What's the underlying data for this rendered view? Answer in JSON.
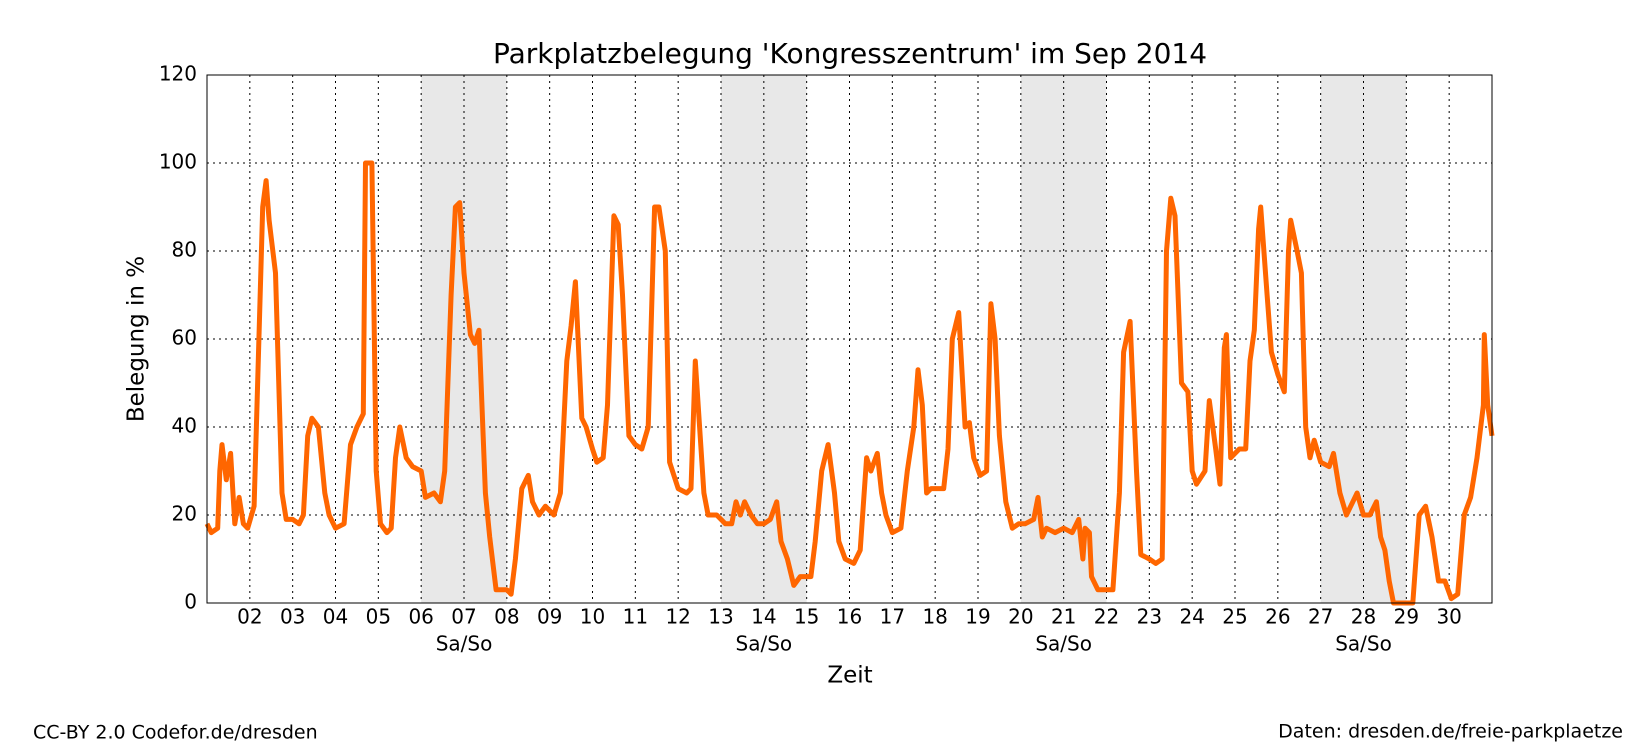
{
  "chart_data": {
    "type": "line",
    "title": "Parkplatzbelegung 'Kongresszentrum' im Sep 2014",
    "x_label": "Zeit",
    "y_label": "Belegung in %",
    "footer_left": "CC-BY 2.0 Codefor.de/dresden",
    "footer_right": "Daten: dresden.de/freie-parkplaetze",
    "color": "#ff6600",
    "grid": true,
    "xlim": [
      1,
      31
    ],
    "ylim": [
      0,
      120
    ],
    "yticks": [
      0,
      20,
      40,
      60,
      80,
      100,
      120
    ],
    "xticks": [
      {
        "value": 2,
        "label": "02"
      },
      {
        "value": 3,
        "label": "03"
      },
      {
        "value": 4,
        "label": "04"
      },
      {
        "value": 5,
        "label": "05"
      },
      {
        "value": 6,
        "label": "06"
      },
      {
        "value": 7,
        "label": "07"
      },
      {
        "value": 8,
        "label": "08"
      },
      {
        "value": 9,
        "label": "09"
      },
      10,
      11,
      12,
      13,
      14,
      15,
      16,
      17,
      18,
      19,
      20,
      21,
      22,
      23,
      24,
      25,
      26,
      27,
      28,
      29,
      30
    ],
    "weekends": [
      {
        "start": 6,
        "end": 8,
        "label": "Sa/So"
      },
      {
        "start": 13,
        "end": 15,
        "label": "Sa/So"
      },
      {
        "start": 20,
        "end": 22,
        "label": "Sa/So"
      },
      {
        "start": 27,
        "end": 29,
        "label": "Sa/So"
      }
    ],
    "x": [
      1.0,
      1.1,
      1.25,
      1.3,
      1.35,
      1.45,
      1.55,
      1.65,
      1.75,
      1.85,
      1.95,
      2.1,
      2.3,
      2.38,
      2.45,
      2.6,
      2.75,
      2.85,
      3.0,
      3.15,
      3.25,
      3.35,
      3.45,
      3.6,
      3.75,
      3.85,
      4.0,
      4.2,
      4.35,
      4.5,
      4.65,
      4.7,
      4.85,
      4.95,
      5.05,
      5.2,
      5.3,
      5.4,
      5.5,
      5.65,
      5.8,
      6.0,
      6.1,
      6.3,
      6.45,
      6.55,
      6.7,
      6.8,
      6.9,
      7.0,
      7.15,
      7.25,
      7.35,
      7.5,
      7.6,
      7.75,
      8.0,
      8.1,
      8.2,
      8.35,
      8.5,
      8.6,
      8.75,
      8.9,
      9.1,
      9.25,
      9.4,
      9.5,
      9.6,
      9.75,
      9.85,
      10.0,
      10.1,
      10.25,
      10.35,
      10.5,
      10.6,
      10.7,
      10.85,
      11.0,
      11.15,
      11.3,
      11.45,
      11.55,
      11.7,
      11.8,
      12.0,
      12.2,
      12.3,
      12.4,
      12.5,
      12.6,
      12.7,
      12.9,
      13.1,
      13.25,
      13.35,
      13.45,
      13.55,
      13.7,
      13.85,
      14.0,
      14.15,
      14.3,
      14.4,
      14.55,
      14.7,
      14.85,
      15.0,
      15.1,
      15.2,
      15.35,
      15.5,
      15.65,
      15.75,
      15.9,
      16.1,
      16.25,
      16.4,
      16.5,
      16.65,
      16.75,
      16.85,
      17.0,
      17.2,
      17.35,
      17.5,
      17.6,
      17.7,
      17.8,
      17.9,
      18.2,
      18.3,
      18.4,
      18.55,
      18.7,
      18.8,
      18.9,
      19.05,
      19.2,
      19.3,
      19.4,
      19.5,
      19.65,
      19.8,
      19.95,
      20.1,
      20.3,
      20.4,
      20.5,
      20.6,
      20.8,
      21.0,
      21.2,
      21.35,
      21.45,
      21.5,
      21.6,
      21.65,
      21.8,
      22.0,
      22.15,
      22.3,
      22.4,
      22.55,
      22.7,
      22.8,
      23.0,
      23.15,
      23.3,
      23.4,
      23.5,
      23.6,
      23.75,
      23.9,
      24.0,
      24.1,
      24.3,
      24.4,
      24.55,
      24.65,
      24.75,
      24.8,
      24.9,
      25.1,
      25.25,
      25.35,
      25.45,
      25.55,
      25.6,
      25.75,
      25.85,
      26.0,
      26.15,
      26.25,
      26.3,
      26.45,
      26.55,
      26.65,
      26.75,
      26.85,
      27.0,
      27.2,
      27.3,
      27.45,
      27.6,
      27.7,
      27.85,
      28.0,
      28.15,
      28.3,
      28.4,
      28.5,
      28.6,
      28.7,
      29.0,
      29.15,
      29.3,
      29.45,
      29.6,
      29.75,
      29.9,
      30.05,
      30.2,
      30.35,
      30.5,
      30.65,
      30.8,
      30.82,
      30.9,
      31.0
    ],
    "values": [
      18,
      16,
      17,
      30,
      36,
      28,
      34,
      18,
      24,
      18,
      17,
      22,
      90,
      96,
      87,
      75,
      25,
      19,
      19,
      18,
      20,
      38,
      42,
      40,
      25,
      20,
      17,
      18,
      36,
      40,
      43,
      100,
      100,
      30,
      18,
      16,
      17,
      33,
      40,
      33,
      31,
      30,
      24,
      25,
      23,
      30,
      70,
      90,
      91,
      75,
      61,
      59,
      62,
      25,
      15,
      3,
      3,
      2,
      10,
      26,
      29,
      23,
      20,
      22,
      20,
      25,
      55,
      63,
      73,
      42,
      40,
      35,
      32,
      33,
      45,
      88,
      86,
      70,
      38,
      36,
      35,
      40,
      90,
      90,
      80,
      32,
      26,
      25,
      26,
      55,
      40,
      25,
      20,
      20,
      18,
      18,
      23,
      20,
      23,
      20,
      18,
      18,
      19,
      23,
      14,
      10,
      4,
      6,
      6,
      6,
      14,
      30,
      36,
      25,
      14,
      10,
      9,
      12,
      33,
      30,
      34,
      25,
      20,
      16,
      17,
      30,
      40,
      53,
      45,
      25,
      26,
      26,
      35,
      60,
      66,
      40,
      41,
      33,
      29,
      30,
      68,
      60,
      38,
      23,
      17,
      18,
      18,
      19,
      24,
      15,
      17,
      16,
      17,
      16,
      19,
      10,
      17,
      16,
      6,
      3,
      3,
      3,
      25,
      57,
      64,
      30,
      11,
      10,
      9,
      10,
      80,
      92,
      88,
      50,
      48,
      30,
      27,
      30,
      46,
      35,
      27,
      58,
      61,
      33,
      35,
      35,
      55,
      62,
      85,
      90,
      70,
      57,
      52,
      48,
      80,
      87,
      80,
      75,
      40,
      33,
      37,
      32,
      31,
      34,
      25,
      20,
      22,
      25,
      20,
      20,
      23,
      15,
      12,
      5,
      0,
      0,
      0,
      20,
      22,
      15,
      5,
      5,
      1,
      2,
      20,
      24,
      33,
      45,
      61,
      45,
      38
    ]
  }
}
